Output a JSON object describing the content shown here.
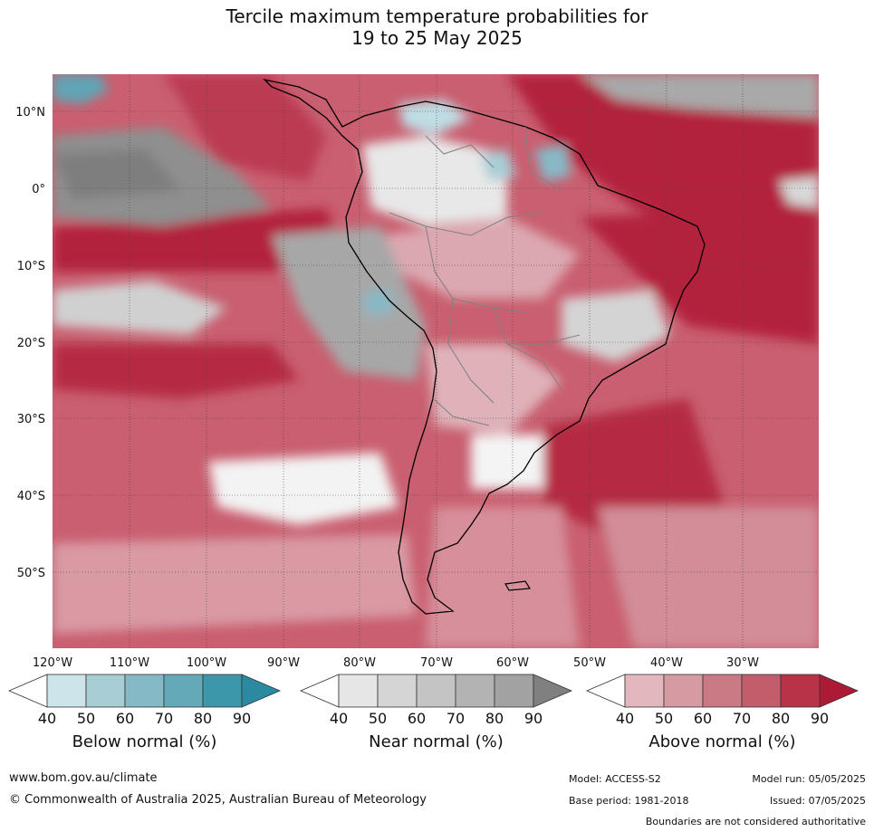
{
  "title": {
    "line1": "Tercile maximum temperature probabilities for",
    "line2": "19 to 25 May 2025"
  },
  "map": {
    "lat_labels": [
      "10°N",
      "0°",
      "10°S",
      "20°S",
      "30°S",
      "40°S",
      "50°S"
    ],
    "lon_labels": [
      "120°W",
      "110°W",
      "100°W",
      "90°W",
      "80°W",
      "70°W",
      "60°W",
      "50°W",
      "40°W",
      "30°W"
    ]
  },
  "colorbars": [
    {
      "label": "Below normal (%)",
      "ticks": [
        "40",
        "50",
        "60",
        "70",
        "80",
        "90"
      ],
      "colors": [
        "#ffffff",
        "#cde4ea",
        "#a9cdd5",
        "#86b9c6",
        "#63a9b8",
        "#3d97ab",
        "#2a8aa0"
      ]
    },
    {
      "label": "Near normal (%)",
      "ticks": [
        "40",
        "50",
        "60",
        "70",
        "80",
        "90"
      ],
      "colors": [
        "#ffffff",
        "#e6e6e6",
        "#d5d5d5",
        "#c4c4c4",
        "#b3b3b3",
        "#a2a2a2",
        "#808080"
      ]
    },
    {
      "label": "Above normal (%)",
      "ticks": [
        "40",
        "50",
        "60",
        "70",
        "80",
        "90"
      ],
      "colors": [
        "#ffffff",
        "#e2b7bd",
        "#d69aa2",
        "#c97a85",
        "#c25d6b",
        "#b83348",
        "#ad1a36"
      ]
    }
  ],
  "footer": {
    "website": "www.bom.gov.au/climate",
    "copyright": "© Commonwealth of Australia 2025, Australian Bureau of Meteorology",
    "model": "Model: ACCESS-S2",
    "base_period": "Base period: 1981-2018",
    "model_run": "Model run: 05/05/2025",
    "issued": "Issued: 07/05/2025",
    "disclaimer": "Boundaries are not considered authoritative"
  }
}
